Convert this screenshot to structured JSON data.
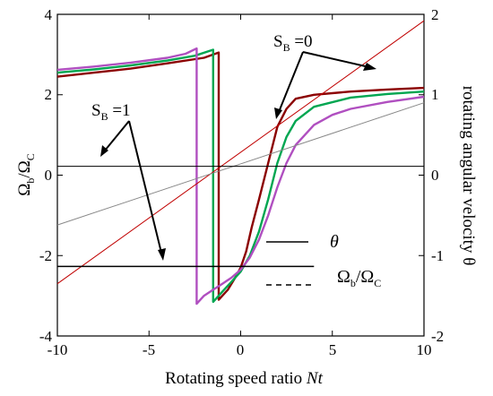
{
  "chart_data": {
    "type": "line",
    "xlabel": "Rotating speed ratio Nt",
    "xlabel_main": "Rotating speed ratio ",
    "xlabel_var": "Nt",
    "ylabel_left": "Ωb/ΩC",
    "ylabel_right": "rotating angular velocity θ",
    "xlim": [
      -10,
      10
    ],
    "ylim_left": [
      -4,
      4
    ],
    "ylim_right": [
      -2,
      2
    ],
    "xticks": [
      -10,
      -5,
      0,
      5,
      10
    ],
    "xtick_labels": [
      "-10",
      "-5",
      "0",
      "5",
      "10"
    ],
    "yticks_left": [
      4,
      2,
      0,
      -2,
      -4
    ],
    "ytick_labels_left": [
      "4",
      "2",
      "0",
      "-2",
      "-4"
    ],
    "yticks_right": [
      2,
      1,
      0,
      -1,
      -2
    ],
    "ytick_labels_right": [
      "2",
      "1",
      "0",
      "-1",
      "-2"
    ],
    "grid": false,
    "series": [
      {
        "color": "#8b0000",
        "values_left": [
          [
            -10,
            2.45
          ],
          [
            -8,
            2.55
          ],
          [
            -6,
            2.65
          ],
          [
            -4,
            2.78
          ],
          [
            -2,
            2.92
          ],
          [
            -1.2,
            3.05
          ],
          [
            -1.2,
            -3.1
          ],
          [
            -0.7,
            -2.85
          ],
          [
            -0.3,
            -2.55
          ],
          [
            0,
            -2.3
          ],
          [
            0.3,
            -1.9
          ],
          [
            0.6,
            -1.3
          ],
          [
            1,
            -0.6
          ],
          [
            1.5,
            0.3
          ],
          [
            2,
            1.2
          ],
          [
            2.5,
            1.65
          ],
          [
            3,
            1.9
          ],
          [
            4,
            2.0
          ],
          [
            6,
            2.08
          ],
          [
            8,
            2.13
          ],
          [
            10,
            2.17
          ]
        ]
      },
      {
        "color": "#00a651",
        "values_left": [
          [
            -10,
            2.55
          ],
          [
            -8,
            2.63
          ],
          [
            -6,
            2.73
          ],
          [
            -4,
            2.85
          ],
          [
            -2.5,
            2.97
          ],
          [
            -1.5,
            3.12
          ],
          [
            -1.5,
            -3.15
          ],
          [
            -1,
            -2.9
          ],
          [
            -0.5,
            -2.65
          ],
          [
            0,
            -2.4
          ],
          [
            0.5,
            -2.0
          ],
          [
            1,
            -1.4
          ],
          [
            1.5,
            -0.6
          ],
          [
            2,
            0.3
          ],
          [
            2.5,
            0.95
          ],
          [
            3,
            1.35
          ],
          [
            4,
            1.7
          ],
          [
            6,
            1.93
          ],
          [
            8,
            2.02
          ],
          [
            10,
            2.08
          ]
        ]
      },
      {
        "color": "#b04fc0",
        "values_left": [
          [
            -10,
            2.62
          ],
          [
            -8,
            2.7
          ],
          [
            -6,
            2.8
          ],
          [
            -4,
            2.92
          ],
          [
            -3,
            3.02
          ],
          [
            -2.4,
            3.15
          ],
          [
            -2.4,
            -3.2
          ],
          [
            -2,
            -3.0
          ],
          [
            -1.5,
            -2.85
          ],
          [
            -1,
            -2.7
          ],
          [
            -0.5,
            -2.55
          ],
          [
            0,
            -2.35
          ],
          [
            0.5,
            -2.05
          ],
          [
            1,
            -1.6
          ],
          [
            1.5,
            -1.0
          ],
          [
            2,
            -0.3
          ],
          [
            2.5,
            0.3
          ],
          [
            3,
            0.75
          ],
          [
            4,
            1.25
          ],
          [
            5,
            1.5
          ],
          [
            6,
            1.65
          ],
          [
            8,
            1.82
          ],
          [
            10,
            1.95
          ]
        ]
      },
      {
        "color": "#c00000",
        "values_right": [
          [
            -10,
            -1.35
          ],
          [
            10,
            1.92
          ]
        ]
      },
      {
        "color": "#888888",
        "values_right": [
          [
            -10,
            -0.62
          ],
          [
            10,
            0.9
          ]
        ]
      }
    ],
    "hlines_left": [
      {
        "y": 0.22,
        "x0": -10,
        "x1": 10,
        "color": "#000000"
      },
      {
        "y": -2.27,
        "x0": -10,
        "x1": 4,
        "color": "#000000"
      }
    ],
    "annotations": [
      {
        "label_main": "S",
        "label_sub": "B",
        "label_rest": " =0",
        "text_x": 1.6,
        "text_y_left": 3.1
      },
      {
        "label_main": "S",
        "label_sub": "B",
        "label_rest": " =1",
        "text_x": -7.8,
        "text_y_left": 1.4
      }
    ],
    "legend": {
      "position": "lower-center",
      "entries": [
        {
          "label": "θ",
          "style": "solid"
        },
        {
          "label_main": "Ω",
          "label_sub1": "b",
          "label_mid": "/Ω",
          "label_sub2": "C",
          "style": "dashed"
        }
      ]
    }
  }
}
